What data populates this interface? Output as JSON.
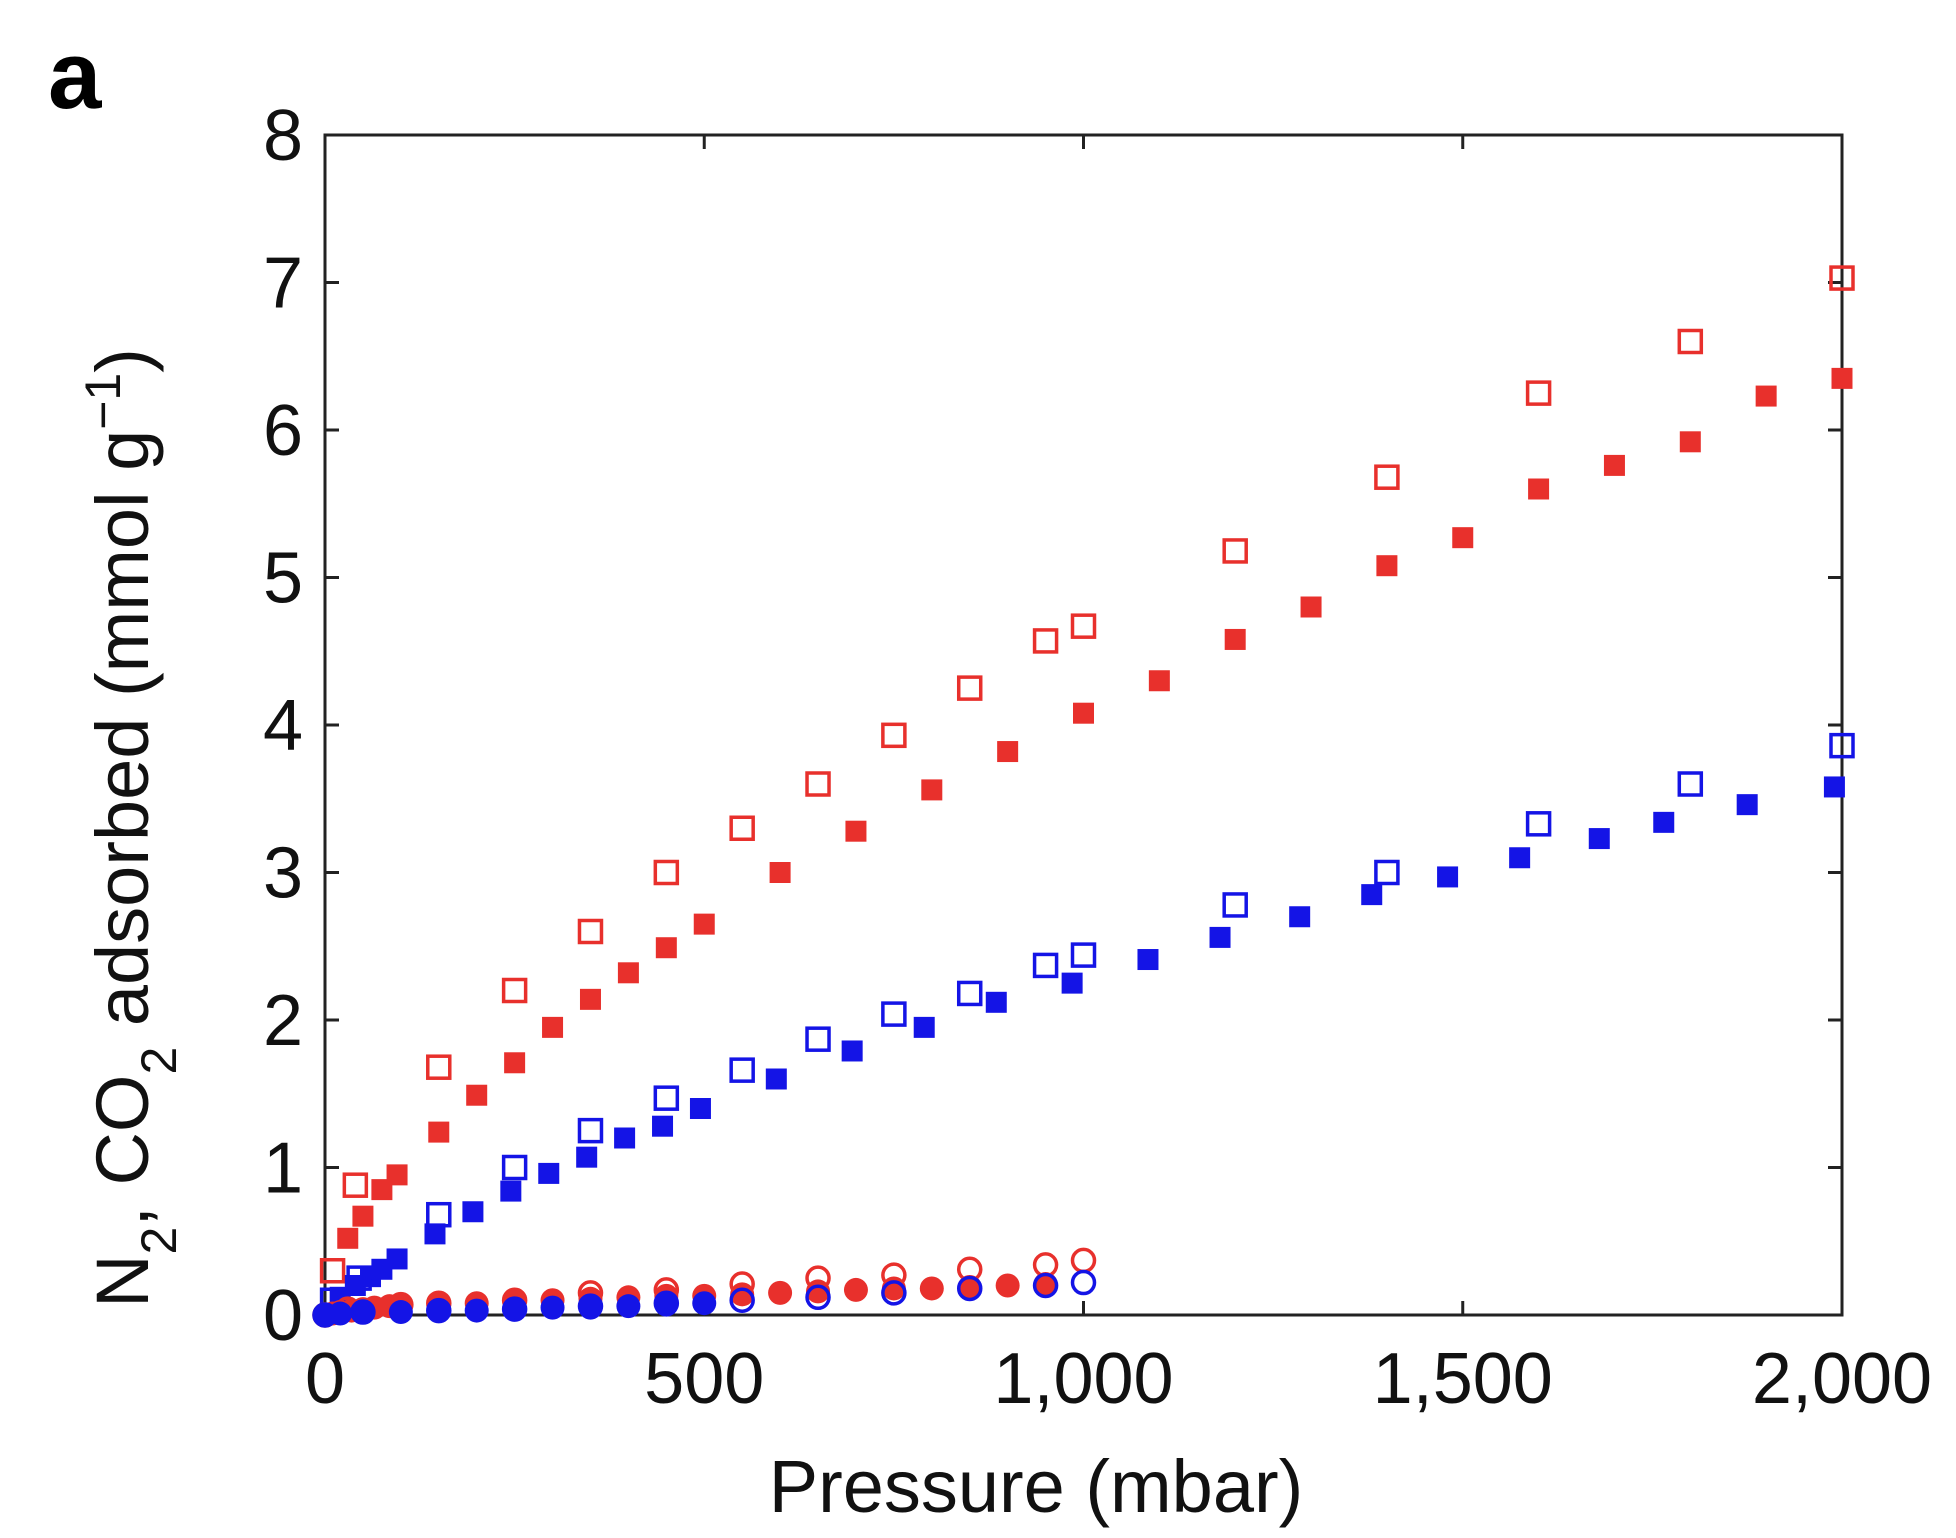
{
  "panel_label": "a",
  "colors": {
    "red": "#e8302c",
    "blue": "#1414e6"
  },
  "chart_data": {
    "type": "scatter",
    "title": "",
    "xlabel": "Pressure (mbar)",
    "ylabel": {
      "prefix": "N",
      "sub1": "2",
      "mid": ", CO",
      "sub2": "2",
      "rest": " adsorbed (mmol g",
      "sup": "−1",
      "end": ")"
    },
    "xlim": [
      0,
      2000
    ],
    "ylim": [
      0,
      8
    ],
    "xticks": [
      0,
      500,
      1000,
      1500,
      2000
    ],
    "xtick_labels": [
      "0",
      "500",
      "1,000",
      "1,500",
      "2,000"
    ],
    "yticks": [
      0,
      1,
      2,
      3,
      4,
      5,
      6,
      7,
      8
    ],
    "ytick_labels": [
      "0",
      "1",
      "2",
      "3",
      "4",
      "5",
      "6",
      "7",
      "8"
    ],
    "grid": false,
    "series": [
      {
        "color": "red",
        "marker": "square",
        "filled": false,
        "points": [
          [
            10,
            0.3
          ],
          [
            40,
            0.88
          ],
          [
            150,
            1.68
          ],
          [
            250,
            2.2
          ],
          [
            350,
            2.6
          ],
          [
            450,
            3.0
          ],
          [
            550,
            3.3
          ],
          [
            650,
            3.6
          ],
          [
            750,
            3.93
          ],
          [
            850,
            4.25
          ],
          [
            950,
            4.57
          ],
          [
            1000,
            4.67
          ],
          [
            1200,
            5.18
          ],
          [
            1400,
            5.68
          ],
          [
            1600,
            6.25
          ],
          [
            1800,
            6.6
          ],
          [
            2000,
            7.03
          ]
        ]
      },
      {
        "color": "red",
        "marker": "square",
        "filled": true,
        "points": [
          [
            30,
            0.52
          ],
          [
            50,
            0.67
          ],
          [
            75,
            0.85
          ],
          [
            95,
            0.95
          ],
          [
            150,
            1.24
          ],
          [
            200,
            1.49
          ],
          [
            250,
            1.71
          ],
          [
            300,
            1.95
          ],
          [
            350,
            2.14
          ],
          [
            400,
            2.32
          ],
          [
            450,
            2.49
          ],
          [
            500,
            2.65
          ],
          [
            600,
            3.0
          ],
          [
            700,
            3.28
          ],
          [
            800,
            3.56
          ],
          [
            900,
            3.82
          ],
          [
            1000,
            4.08
          ],
          [
            1100,
            4.3
          ],
          [
            1200,
            4.58
          ],
          [
            1300,
            4.8
          ],
          [
            1400,
            5.08
          ],
          [
            1500,
            5.27
          ],
          [
            1600,
            5.6
          ],
          [
            1700,
            5.76
          ],
          [
            1800,
            5.92
          ],
          [
            1900,
            6.23
          ],
          [
            2000,
            6.35
          ]
        ]
      },
      {
        "color": "blue",
        "marker": "square",
        "filled": false,
        "points": [
          [
            10,
            0.1
          ],
          [
            45,
            0.25
          ],
          [
            150,
            0.68
          ],
          [
            250,
            1.0
          ],
          [
            350,
            1.25
          ],
          [
            450,
            1.47
          ],
          [
            550,
            1.66
          ],
          [
            650,
            1.87
          ],
          [
            750,
            2.04
          ],
          [
            850,
            2.18
          ],
          [
            950,
            2.37
          ],
          [
            1000,
            2.44
          ],
          [
            1200,
            2.78
          ],
          [
            1400,
            3.0
          ],
          [
            1600,
            3.33
          ],
          [
            1800,
            3.6
          ],
          [
            2000,
            3.86
          ]
        ]
      },
      {
        "color": "blue",
        "marker": "square",
        "filled": true,
        "points": [
          [
            20,
            0.12
          ],
          [
            40,
            0.2
          ],
          [
            60,
            0.26
          ],
          [
            75,
            0.31
          ],
          [
            95,
            0.38
          ],
          [
            145,
            0.55
          ],
          [
            195,
            0.7
          ],
          [
            245,
            0.84
          ],
          [
            295,
            0.96
          ],
          [
            345,
            1.07
          ],
          [
            395,
            1.2
          ],
          [
            445,
            1.28
          ],
          [
            495,
            1.4
          ],
          [
            595,
            1.6
          ],
          [
            695,
            1.79
          ],
          [
            790,
            1.95
          ],
          [
            885,
            2.12
          ],
          [
            985,
            2.25
          ],
          [
            1085,
            2.41
          ],
          [
            1180,
            2.56
          ],
          [
            1285,
            2.7
          ],
          [
            1380,
            2.85
          ],
          [
            1480,
            2.97
          ],
          [
            1575,
            3.1
          ],
          [
            1680,
            3.23
          ],
          [
            1765,
            3.34
          ],
          [
            1875,
            3.46
          ],
          [
            1990,
            3.58
          ]
        ]
      },
      {
        "color": "red",
        "marker": "circle",
        "filled": false,
        "points": [
          [
            0,
            0.0
          ],
          [
            30,
            0.04
          ],
          [
            100,
            0.07
          ],
          [
            150,
            0.08
          ],
          [
            250,
            0.1
          ],
          [
            350,
            0.15
          ],
          [
            450,
            0.17
          ],
          [
            550,
            0.21
          ],
          [
            650,
            0.25
          ],
          [
            750,
            0.27
          ],
          [
            850,
            0.31
          ],
          [
            950,
            0.34
          ],
          [
            1000,
            0.37
          ]
        ]
      },
      {
        "color": "red",
        "marker": "circle",
        "filled": true,
        "points": [
          [
            0,
            0.0
          ],
          [
            10,
            0.01
          ],
          [
            20,
            0.02
          ],
          [
            35,
            0.03
          ],
          [
            50,
            0.04
          ],
          [
            65,
            0.05
          ],
          [
            85,
            0.06
          ],
          [
            100,
            0.06
          ],
          [
            150,
            0.07
          ],
          [
            200,
            0.08
          ],
          [
            250,
            0.09
          ],
          [
            300,
            0.1
          ],
          [
            350,
            0.11
          ],
          [
            400,
            0.12
          ],
          [
            450,
            0.13
          ],
          [
            500,
            0.13
          ],
          [
            550,
            0.14
          ],
          [
            600,
            0.15
          ],
          [
            650,
            0.16
          ],
          [
            700,
            0.17
          ],
          [
            750,
            0.18
          ],
          [
            800,
            0.18
          ],
          [
            850,
            0.19
          ],
          [
            900,
            0.2
          ],
          [
            950,
            0.21
          ]
        ]
      },
      {
        "color": "blue",
        "marker": "circle",
        "filled": false,
        "points": [
          [
            0,
            0.0
          ],
          [
            50,
            0.02
          ],
          [
            150,
            0.03
          ],
          [
            250,
            0.04
          ],
          [
            350,
            0.06
          ],
          [
            450,
            0.08
          ],
          [
            550,
            0.1
          ],
          [
            650,
            0.12
          ],
          [
            750,
            0.15
          ],
          [
            850,
            0.18
          ],
          [
            950,
            0.2
          ],
          [
            1000,
            0.22
          ]
        ]
      },
      {
        "color": "blue",
        "marker": "circle",
        "filled": true,
        "points": [
          [
            0,
            0.0
          ],
          [
            20,
            0.01
          ],
          [
            50,
            0.02
          ],
          [
            100,
            0.02
          ],
          [
            150,
            0.03
          ],
          [
            200,
            0.03
          ],
          [
            250,
            0.04
          ],
          [
            300,
            0.05
          ],
          [
            350,
            0.05
          ],
          [
            400,
            0.06
          ],
          [
            450,
            0.07
          ],
          [
            500,
            0.08
          ]
        ]
      }
    ]
  }
}
